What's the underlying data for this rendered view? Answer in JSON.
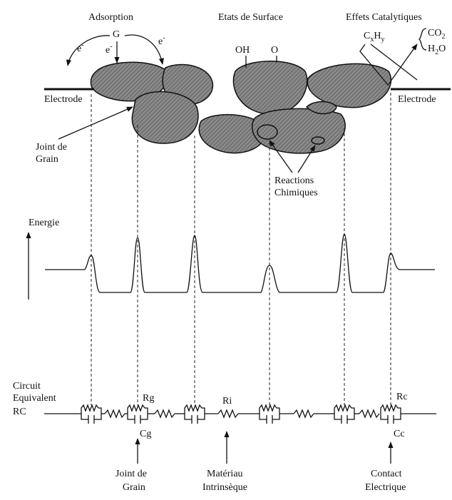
{
  "header": {
    "adsorption": "Adsorption",
    "surface_states": "Etats de Surface",
    "catalytic_effects": "Effets Catalytiques"
  },
  "top_labels": {
    "g": "G",
    "e1": "e",
    "e2": "e",
    "e3": "e",
    "charge": "-",
    "oh": "OH",
    "o": "O",
    "hydrocarbon": [
      "C",
      "x",
      "H",
      "y"
    ],
    "products": [
      [
        "CO",
        "2"
      ],
      [
        "H",
        "2",
        "O"
      ]
    ],
    "electrode_left": "Electrode",
    "electrode_right": "Electrode",
    "grain_joint": [
      "Joint de",
      "Grain"
    ],
    "reactions": [
      "Reactions",
      "Chimiques"
    ]
  },
  "energy": {
    "label": "Energie"
  },
  "circuit": {
    "label": [
      "Circuit",
      "Equivalent",
      "RC"
    ],
    "rg": "Rg",
    "cg": "Cg",
    "ri": "Ri",
    "rc": "Rc",
    "cc": "Cc"
  },
  "footer": {
    "grain_joint": [
      "Joint de",
      "Grain"
    ],
    "intrinsic": [
      "Matériau",
      "Intrinsèque"
    ],
    "contact": [
      "Contact",
      "Electrique"
    ]
  }
}
